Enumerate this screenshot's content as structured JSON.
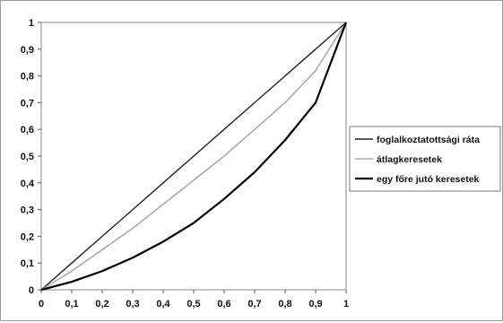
{
  "chart_data": {
    "type": "line",
    "title": "",
    "xlabel": "",
    "ylabel": "",
    "xlim": [
      0,
      1
    ],
    "ylim": [
      0,
      1
    ],
    "grid": false,
    "legend_position": "right",
    "x_ticks": [
      "0",
      "0,1",
      "0,2",
      "0,3",
      "0,4",
      "0,5",
      "0,6",
      "0,7",
      "0,8",
      "0,9",
      "1"
    ],
    "y_ticks": [
      "0",
      "0,1",
      "0,2",
      "0,3",
      "0,4",
      "0,5",
      "0,6",
      "0,7",
      "0,8",
      "0,9",
      "1"
    ],
    "x": [
      0,
      0.1,
      0.2,
      0.3,
      0.4,
      0.5,
      0.6,
      0.7,
      0.8,
      0.9,
      1
    ],
    "series": [
      {
        "name": "foglalkoztatottsági ráta",
        "color": "#222222",
        "values": [
          0,
          0.1,
          0.2,
          0.3,
          0.4,
          0.5,
          0.6,
          0.7,
          0.8,
          0.9,
          1
        ]
      },
      {
        "name": "átlagkeresetek",
        "color": "#aaaaaa",
        "values": [
          0,
          0.07,
          0.15,
          0.23,
          0.32,
          0.41,
          0.5,
          0.6,
          0.7,
          0.82,
          1
        ]
      },
      {
        "name": "egy főre jutó keresetek",
        "color": "#000000",
        "values": [
          0,
          0.03,
          0.07,
          0.12,
          0.18,
          0.25,
          0.34,
          0.44,
          0.56,
          0.7,
          1
        ]
      }
    ]
  }
}
